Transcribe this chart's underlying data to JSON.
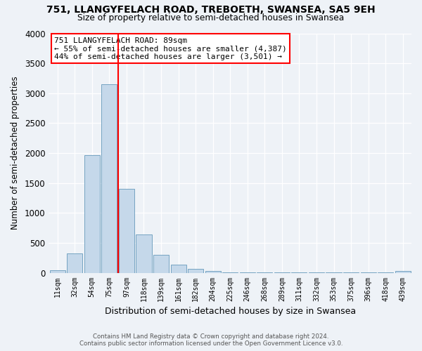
{
  "title": "751, LLANGYFELACH ROAD, TREBOETH, SWANSEA, SA5 9EH",
  "subtitle": "Size of property relative to semi-detached houses in Swansea",
  "xlabel": "Distribution of semi-detached houses by size in Swansea",
  "ylabel": "Number of semi-detached properties",
  "bar_labels": [
    "11sqm",
    "32sqm",
    "54sqm",
    "75sqm",
    "97sqm",
    "118sqm",
    "139sqm",
    "161sqm",
    "182sqm",
    "204sqm",
    "225sqm",
    "246sqm",
    "268sqm",
    "289sqm",
    "311sqm",
    "332sqm",
    "353sqm",
    "375sqm",
    "396sqm",
    "418sqm",
    "439sqm"
  ],
  "bar_values": [
    45,
    320,
    1970,
    3150,
    1400,
    640,
    300,
    135,
    60,
    25,
    8,
    5,
    3,
    3,
    2,
    2,
    2,
    2,
    2,
    2,
    30
  ],
  "bar_color": "#c5d8ea",
  "bar_edge_color": "#6699bb",
  "vline_color": "red",
  "vline_pos": 3.5,
  "annotation_title": "751 LLANGYFELACH ROAD: 89sqm",
  "annotation_line1": "← 55% of semi-detached houses are smaller (4,387)",
  "annotation_line2": "44% of semi-detached houses are larger (3,501) →",
  "annotation_box_color": "white",
  "annotation_box_edge": "red",
  "ylim": [
    0,
    4000
  ],
  "yticks": [
    0,
    500,
    1000,
    1500,
    2000,
    2500,
    3000,
    3500,
    4000
  ],
  "footer_line1": "Contains HM Land Registry data © Crown copyright and database right 2024.",
  "footer_line2": "Contains public sector information licensed under the Open Government Licence v3.0.",
  "bg_color": "#eef2f7"
}
